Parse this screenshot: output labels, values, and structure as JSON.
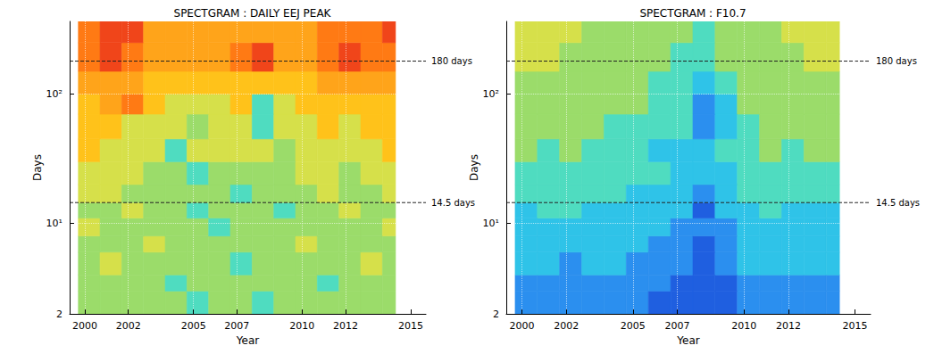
{
  "chart_data": [
    {
      "type": "spectrogram",
      "title": "SPECTGRAM : DAILY EEJ PEAK",
      "x_label": "Year",
      "y_label": "Days",
      "log": "y",
      "grid": true,
      "xlim": [
        1999.3,
        2015.7
      ],
      "xticks": [
        2000,
        2002,
        2005,
        2007,
        2010,
        2012,
        2015
      ],
      "ylim": [
        2,
        365
      ],
      "yticks": [
        2,
        {
          "value": 10,
          "label": "10¹"
        },
        {
          "value": 100,
          "label": "10²"
        }
      ],
      "color_range": [
        0,
        10
      ],
      "x_edges": [
        1999.7,
        2000.7,
        2001.7,
        2002.7,
        2003.7,
        2004.7,
        2005.7,
        2006.7,
        2007.7,
        2008.7,
        2009.7,
        2010.7,
        2011.7,
        2012.7,
        2013.7,
        2014.3
      ],
      "y_edges": [
        2,
        3,
        4,
        6,
        8,
        11,
        14.5,
        20,
        30,
        45,
        70,
        100,
        150,
        250,
        365
      ],
      "cells": [
        [
          5,
          5,
          5,
          5,
          5,
          4,
          5,
          5,
          4,
          5,
          5,
          5,
          5,
          5,
          5
        ],
        [
          5,
          5,
          5,
          5,
          4,
          5,
          5,
          5,
          5,
          5,
          5,
          4,
          5,
          5,
          5
        ],
        [
          5,
          6,
          5,
          5,
          5,
          5,
          5,
          4,
          5,
          5,
          5,
          5,
          5,
          6,
          5
        ],
        [
          5,
          5,
          5,
          6,
          5,
          5,
          5,
          5,
          5,
          5,
          6,
          5,
          5,
          5,
          5
        ],
        [
          6,
          5,
          5,
          5,
          5,
          5,
          4,
          5,
          5,
          5,
          5,
          5,
          5,
          5,
          6
        ],
        [
          5,
          5,
          6,
          5,
          5,
          4,
          5,
          5,
          5,
          4,
          5,
          5,
          6,
          5,
          5
        ],
        [
          6,
          6,
          5,
          5,
          5,
          5,
          5,
          4,
          5,
          5,
          5,
          6,
          5,
          5,
          6
        ],
        [
          6,
          6,
          6,
          5,
          5,
          4,
          5,
          5,
          5,
          5,
          6,
          6,
          5,
          6,
          6
        ],
        [
          7,
          6,
          6,
          6,
          4,
          6,
          6,
          6,
          6,
          5,
          6,
          6,
          6,
          6,
          7
        ],
        [
          7,
          7,
          6,
          6,
          6,
          5,
          6,
          6,
          4,
          6,
          6,
          7,
          6,
          7,
          7
        ],
        [
          7,
          8,
          9,
          7,
          6,
          6,
          6,
          7,
          4,
          6,
          7,
          7,
          7,
          7,
          7
        ],
        [
          8,
          8,
          8,
          7,
          7,
          7,
          7,
          7,
          7,
          7,
          7,
          8,
          8,
          8,
          8
        ],
        [
          9,
          10,
          9,
          8,
          8,
          8,
          8,
          9,
          10,
          8,
          8,
          9,
          10,
          9,
          9
        ],
        [
          9,
          10,
          10,
          8,
          8,
          8,
          8,
          8,
          8,
          8,
          8,
          9,
          9,
          9,
          10
        ]
      ],
      "hlines": [
        {
          "value": 180,
          "label": "180 days",
          "line_style": "dashed"
        },
        {
          "value": 14.5,
          "label": "14.5 days",
          "line_style": "dashed"
        }
      ]
    },
    {
      "type": "spectrogram",
      "title": "SPECTGRAM : F10.7",
      "x_label": "Year",
      "y_label": "Days",
      "log": "y",
      "grid": true,
      "xlim": [
        1999.3,
        2015.7
      ],
      "xticks": [
        2000,
        2002,
        2005,
        2007,
        2010,
        2012,
        2015
      ],
      "ylim": [
        2,
        365
      ],
      "yticks": [
        2,
        {
          "value": 10,
          "label": "10¹"
        },
        {
          "value": 100,
          "label": "10²"
        }
      ],
      "color_range": [
        0,
        10
      ],
      "x_edges": [
        1999.7,
        2000.7,
        2001.7,
        2002.7,
        2003.7,
        2004.7,
        2005.7,
        2006.7,
        2007.7,
        2008.7,
        2009.7,
        2010.7,
        2011.7,
        2012.7,
        2013.7,
        2014.3
      ],
      "y_edges": [
        2,
        3,
        4,
        6,
        8,
        11,
        14.5,
        20,
        30,
        45,
        70,
        100,
        150,
        250,
        365
      ],
      "cells": [
        [
          2,
          2,
          2,
          2,
          2,
          2,
          1,
          1,
          1,
          1,
          2,
          2,
          2,
          2,
          2
        ],
        [
          2,
          2,
          2,
          2,
          2,
          2,
          2,
          1,
          1,
          1,
          2,
          2,
          2,
          2,
          2
        ],
        [
          3,
          3,
          2,
          3,
          3,
          2,
          2,
          2,
          1,
          2,
          3,
          3,
          3,
          3,
          3
        ],
        [
          3,
          3,
          3,
          3,
          3,
          3,
          2,
          2,
          1,
          2,
          3,
          3,
          3,
          3,
          3
        ],
        [
          3,
          3,
          3,
          3,
          3,
          3,
          3,
          2,
          2,
          2,
          3,
          3,
          3,
          3,
          3
        ],
        [
          3,
          4,
          4,
          3,
          3,
          3,
          3,
          3,
          1,
          3,
          3,
          4,
          3,
          3,
          3
        ],
        [
          4,
          4,
          4,
          4,
          4,
          3,
          3,
          3,
          2,
          3,
          4,
          4,
          4,
          4,
          4
        ],
        [
          4,
          4,
          4,
          4,
          4,
          4,
          4,
          3,
          3,
          3,
          4,
          4,
          4,
          4,
          4
        ],
        [
          5,
          4,
          5,
          4,
          4,
          4,
          3,
          3,
          3,
          4,
          4,
          5,
          4,
          5,
          5
        ],
        [
          5,
          5,
          5,
          5,
          4,
          4,
          4,
          4,
          2,
          3,
          4,
          5,
          5,
          5,
          5
        ],
        [
          5,
          5,
          5,
          5,
          5,
          5,
          4,
          4,
          2,
          3,
          5,
          5,
          5,
          5,
          5
        ],
        [
          5,
          5,
          5,
          5,
          5,
          5,
          4,
          4,
          3,
          4,
          5,
          5,
          5,
          5,
          5
        ],
        [
          6,
          6,
          5,
          5,
          5,
          5,
          5,
          4,
          4,
          5,
          5,
          5,
          5,
          6,
          6
        ],
        [
          6,
          6,
          6,
          5,
          5,
          5,
          5,
          5,
          4,
          5,
          5,
          5,
          6,
          6,
          6
        ]
      ],
      "hlines": [
        {
          "value": 180,
          "label": "180 days",
          "line_style": "dashed"
        },
        {
          "value": 14.5,
          "label": "14.5 days",
          "line_style": "dashed"
        }
      ]
    }
  ]
}
